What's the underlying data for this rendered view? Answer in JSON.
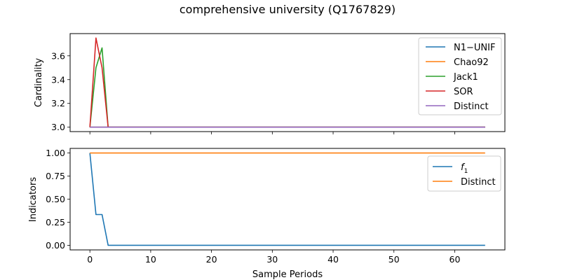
{
  "title": "comprehensive university (Q1767829)",
  "chart_data": [
    {
      "type": "line",
      "ylabel": "Cardinality",
      "xlabel": "",
      "xlim": [
        -3.25,
        68.25
      ],
      "ylim": [
        2.963,
        3.787
      ],
      "xticks": [
        0,
        10,
        20,
        30,
        40,
        50,
        60
      ],
      "xtick_labels_visible": false,
      "yticks": [
        3.0,
        3.2,
        3.4,
        3.6
      ],
      "ytick_labels": [
        "3.0",
        "3.2",
        "3.4",
        "3.6"
      ],
      "grid": false,
      "legend": "top-right",
      "series": [
        {
          "name": "N1−UNIF",
          "color": "#1f77b4",
          "x": [
            0,
            1,
            2,
            3,
            65
          ],
          "y": [
            3.0,
            3.0,
            3.0,
            3.0,
            3.0
          ]
        },
        {
          "name": "Chao92",
          "color": "#ff7f0e",
          "x": [
            0,
            1,
            2,
            3,
            65
          ],
          "y": [
            3.0,
            3.0,
            3.0,
            3.0,
            3.0
          ]
        },
        {
          "name": "Jack1",
          "color": "#2ca02c",
          "x": [
            0,
            1,
            2,
            3,
            65
          ],
          "y": [
            3.0,
            3.5,
            3.667,
            3.0,
            3.0
          ]
        },
        {
          "name": "SOR",
          "color": "#d62728",
          "x": [
            0,
            1,
            2,
            3,
            65
          ],
          "y": [
            3.0,
            3.75,
            3.5,
            3.0,
            3.0
          ]
        },
        {
          "name": "Distinct",
          "color": "#9467bd",
          "x": [
            0,
            1,
            2,
            3,
            65
          ],
          "y": [
            3.0,
            3.0,
            3.0,
            3.0,
            3.0
          ]
        }
      ]
    },
    {
      "type": "line",
      "ylabel": "Indicators",
      "xlabel": "Sample Periods",
      "xlim": [
        -3.25,
        68.25
      ],
      "ylim": [
        -0.05,
        1.05
      ],
      "xticks": [
        0,
        10,
        20,
        30,
        40,
        50,
        60
      ],
      "xtick_labels": [
        "0",
        "10",
        "20",
        "30",
        "40",
        "50",
        "60"
      ],
      "yticks": [
        0.0,
        0.25,
        0.5,
        0.75,
        1.0
      ],
      "ytick_labels": [
        "0.00",
        "0.25",
        "0.50",
        "0.75",
        "1.00"
      ],
      "grid": false,
      "legend": "top-right",
      "series": [
        {
          "name": "f",
          "name_subscript": "1",
          "color": "#1f77b4",
          "x": [
            0,
            1,
            2,
            3,
            65
          ],
          "y": [
            1.0,
            0.333,
            0.333,
            0.0,
            0.0
          ]
        },
        {
          "name": "Distinct",
          "color": "#ff7f0e",
          "x": [
            0,
            1,
            2,
            3,
            65
          ],
          "y": [
            1.0,
            1.0,
            1.0,
            1.0,
            1.0
          ]
        }
      ]
    }
  ]
}
